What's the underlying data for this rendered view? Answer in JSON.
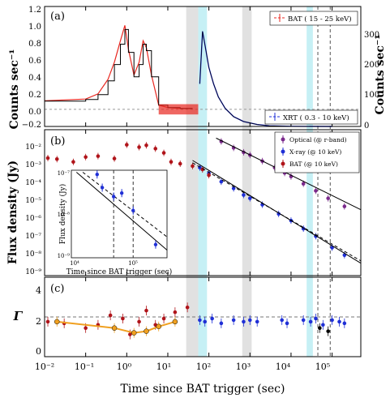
{
  "figure": {
    "xlabel": "Time since BAT trigger (sec)",
    "xtick_labels": [
      "10⁻²",
      "10⁻¹",
      "10⁰",
      "10¹",
      "10²",
      "10³",
      "10⁴",
      "10⁵"
    ]
  },
  "panels": {
    "a": {
      "tag": "(a)",
      "ylabel_left": "Counts sec⁻¹",
      "ylabel_right": "Counts sec⁻¹",
      "yticks_left": [
        "−0.2",
        "0.0",
        "0.2",
        "0.4",
        "0.6",
        "0.8",
        "1.0",
        "1.2"
      ],
      "yticks_right": [
        "0",
        "100",
        "200",
        "300"
      ],
      "legend_bat": "BAT ( 15 - 25 keV)",
      "legend_xrt": "XRT ( 0.3 - 10 keV)"
    },
    "b": {
      "tag": "(b)",
      "ylabel": "Flux density (Jy)",
      "yticks": [
        "10⁻²",
        "10⁻³",
        "10⁻⁴",
        "10⁻⁵",
        "10⁻⁶",
        "10⁻⁷",
        "10⁻⁸",
        "10⁻⁹"
      ],
      "legend": [
        "Optical (@ r-band)",
        "X-ray (@ 10 keV)",
        "BAT (@ 10 keV)"
      ],
      "inset": {
        "xlabel": "Time since BAT trigger (sec)",
        "ylabel": "Flux density (Jy)",
        "xticks": [
          "10⁴",
          "10⁵"
        ],
        "yticks": [
          "10⁻⁷",
          "10⁻⁸",
          "10⁻⁹"
        ]
      }
    },
    "c": {
      "tag": "(c)",
      "ylabel": "Γ",
      "yticks": [
        "0",
        "2",
        "4"
      ]
    }
  },
  "colors": {
    "bat": "#e8261f",
    "xrt": "#1f2fd6",
    "optical": "#7b2a8c",
    "bat_dark": "#b0141a",
    "gamma_orange": "#f0a020",
    "cyan_band": "#b8ecf3",
    "gray_band": "#d9d9d9"
  },
  "chart_data": [
    {
      "panel": "a",
      "type": "line",
      "x_scale": "log",
      "xlim": [
        0.01,
        500000
      ],
      "ylim_left": [
        -0.2,
        1.2
      ],
      "ylim_right": [
        0,
        300
      ],
      "shaded_regions": [
        {
          "x": [
            28,
            55
          ],
          "color": "gray"
        },
        {
          "x": [
            55,
            90
          ],
          "color": "cyan"
        },
        {
          "x": [
            650,
            1100
          ],
          "color": "gray"
        },
        {
          "x": [
            24000,
            34000
          ],
          "color": "cyan"
        }
      ],
      "vertical_lines": [
        45000,
        90000
      ],
      "series": [
        {
          "name": "BAT ( 15 - 25 keV)",
          "axis": "left",
          "x": [
            0.01,
            0.1,
            0.2,
            0.35,
            0.5,
            0.7,
            0.9,
            1.1,
            1.5,
            2.0,
            2.5,
            3.0,
            4.0,
            6.0,
            10,
            20,
            40
          ],
          "y": [
            0.1,
            0.12,
            0.18,
            0.35,
            0.55,
            0.8,
            0.98,
            0.7,
            0.4,
            0.55,
            0.8,
            0.72,
            0.4,
            0.05,
            0.02,
            0.01,
            0.01
          ]
        },
        {
          "name": "XRT ( 0.3 - 10 keV)",
          "axis": "right",
          "x": [
            60,
            70,
            80,
            100,
            130,
            170,
            250,
            400,
            700,
            1500,
            3000,
            10000,
            100000
          ],
          "y": [
            130,
            290,
            250,
            180,
            130,
            90,
            55,
            30,
            15,
            6,
            2,
            0.5,
            0.1
          ]
        }
      ]
    },
    {
      "panel": "b",
      "type": "scatter",
      "x_scale": "log",
      "y_scale": "log",
      "xlim": [
        0.01,
        500000
      ],
      "ylim": [
        1e-09,
        0.05
      ],
      "series": [
        {
          "name": "Optical (@ r-band)",
          "x": [
            200,
            400,
            700,
            1000,
            2000,
            4000,
            7000,
            10000,
            20000,
            40000,
            80000,
            200000
          ],
          "y": [
            0.012,
            0.0055,
            0.0032,
            0.0023,
            0.0011,
            0.0005,
            0.00026,
            0.00017,
            7e-05,
            3e-05,
            1.2e-05,
            4.5e-06
          ]
        },
        {
          "name": "X-ray (@ 10 keV)",
          "x": [
            60,
            100,
            200,
            400,
            700,
            1000,
            2000,
            5000,
            10000,
            20000,
            40000,
            100000,
            200000
          ],
          "y": [
            0.0005,
            0.00025,
            9e-05,
            4e-05,
            1.8e-05,
            1.2e-05,
            5.5e-06,
            1.8e-06,
            8e-07,
            3e-07,
            1.2e-07,
            3e-08,
            1.2e-08
          ]
        },
        {
          "name": "BAT (@ 10 keV)",
          "x": [
            0.012,
            0.02,
            0.05,
            0.1,
            0.2,
            0.5,
            1,
            2,
            3,
            5,
            8,
            12,
            20,
            40,
            70,
            100
          ],
          "y": [
            0.0016,
            0.0014,
            0.001,
            0.0018,
            0.002,
            0.0015,
            0.008,
            0.006,
            0.0075,
            0.005,
            0.003,
            0.001,
            0.0008,
            0.0006,
            0.0004,
            0.0002
          ]
        }
      ],
      "inset": {
        "xlim": [
          10000,
          300000
        ],
        "ylim": [
          1e-09,
          1e-07
        ],
        "x": [
          25000,
          30000,
          45000,
          60000,
          90000,
          200000
        ],
        "y": [
          8e-08,
          4e-08,
          2.5e-08,
          3e-08,
          1.2e-08,
          2e-09
        ]
      }
    },
    {
      "panel": "c",
      "type": "scatter",
      "x_scale": "log",
      "xlim": [
        0.01,
        500000
      ],
      "ylim": [
        -0.5,
        4.5
      ],
      "reference_line": 2.0,
      "series": [
        {
          "name": "BAT",
          "x": [
            0.012,
            0.03,
            0.1,
            0.2,
            0.4,
            0.8,
            1.2,
            2,
            3,
            5,
            8,
            15,
            30
          ],
          "y": [
            1.7,
            1.6,
            1.3,
            1.5,
            2.1,
            1.9,
            0.9,
            1.7,
            2.4,
            1.5,
            1.9,
            2.3,
            2.6
          ]
        },
        {
          "name": "BAT fit",
          "x": [
            0.02,
            0.5,
            1.5,
            3,
            6,
            15
          ],
          "y": [
            1.7,
            1.3,
            1.0,
            1.1,
            1.4,
            1.7
          ]
        },
        {
          "name": "X-ray",
          "x": [
            60,
            80,
            120,
            200,
            400,
            700,
            1000,
            1500,
            6000,
            8000,
            20000,
            30000,
            40000,
            60000,
            100000,
            150000,
            200000
          ],
          "y": [
            1.8,
            1.7,
            1.9,
            1.6,
            1.8,
            1.7,
            1.8,
            1.7,
            1.8,
            1.6,
            1.8,
            1.7,
            1.9,
            1.5,
            1.8,
            1.7,
            1.6
          ]
        },
        {
          "name": "late",
          "x": [
            50000,
            80000
          ],
          "y": [
            1.3,
            1.1
          ]
        }
      ]
    }
  ]
}
